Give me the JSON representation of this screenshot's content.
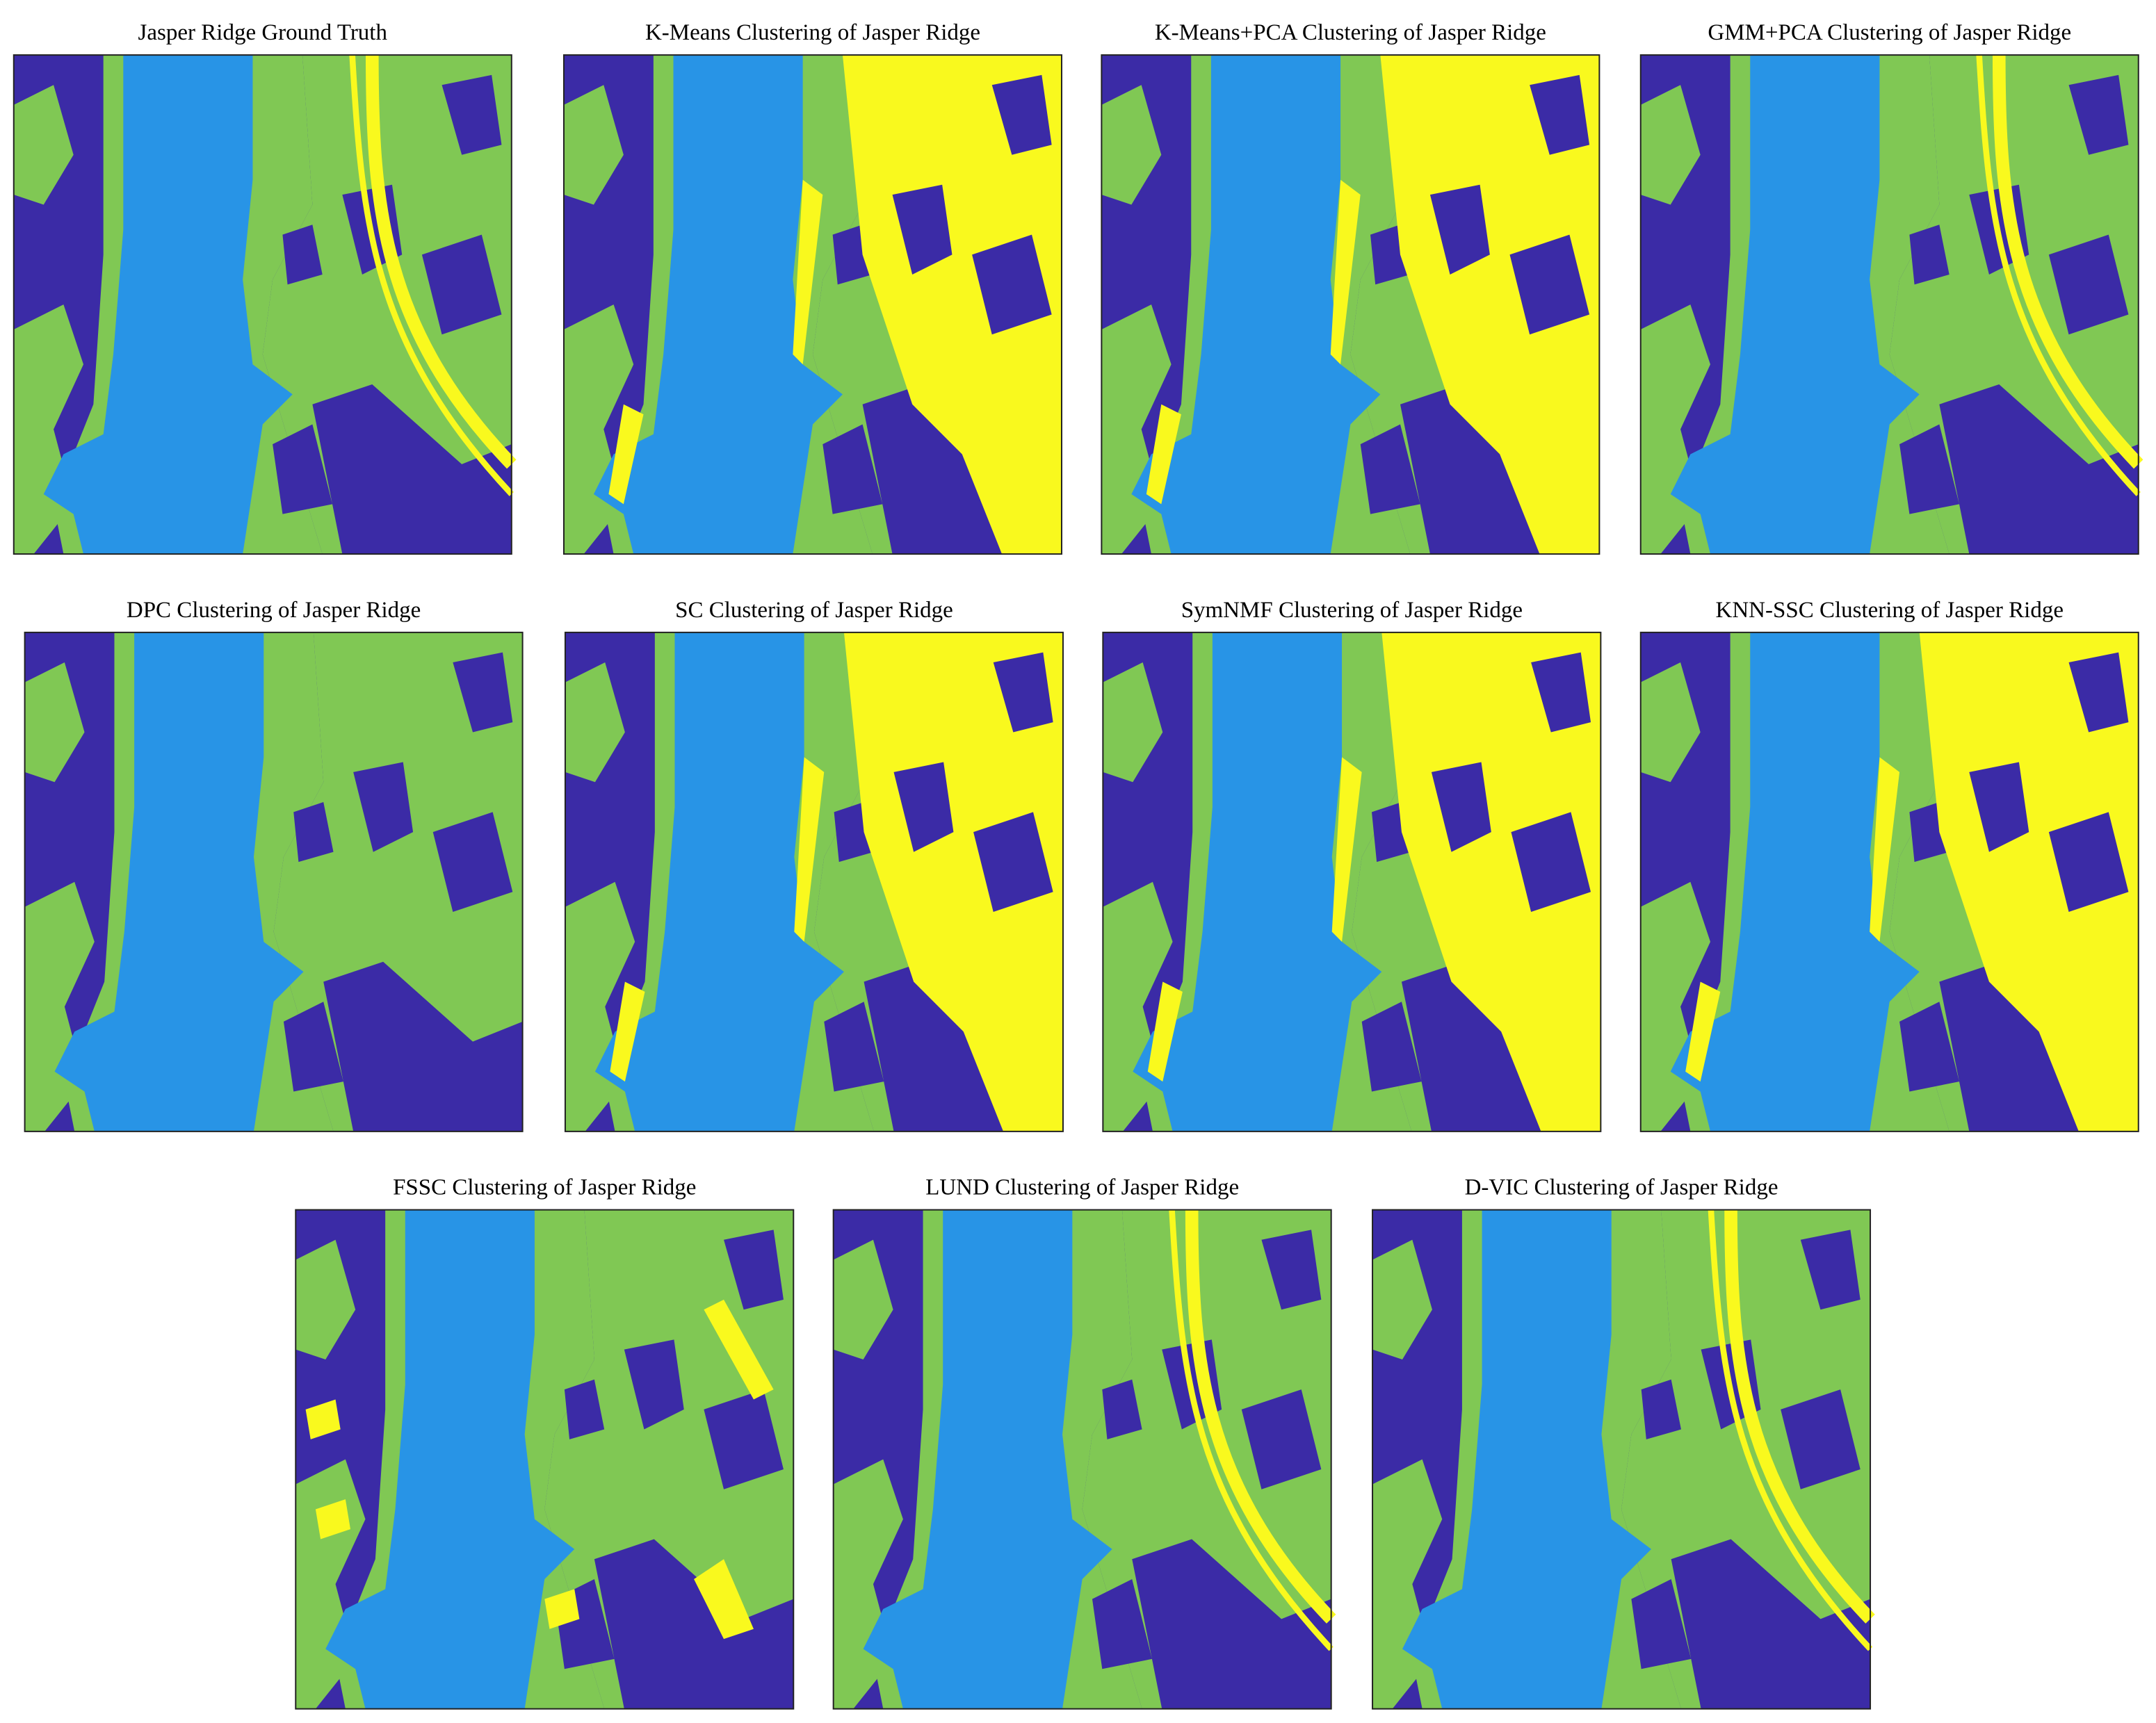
{
  "panels": [
    {
      "title": "Jasper Ridge Ground Truth"
    },
    {
      "title": "K-Means Clustering of Jasper Ridge"
    },
    {
      "title": "K-Means+PCA Clustering of Jasper Ridge"
    },
    {
      "title": "GMM+PCA Clustering of Jasper Ridge"
    },
    {
      "title": "DPC Clustering of Jasper Ridge"
    },
    {
      "title": "SC Clustering of Jasper Ridge"
    },
    {
      "title": "SymNMF Clustering of Jasper Ridge"
    },
    {
      "title": "KNN-SSC Clustering of Jasper Ridge"
    },
    {
      "title": "FSSC Clustering of Jasper Ridge"
    },
    {
      "title": "LUND Clustering of Jasper Ridge"
    },
    {
      "title": "D-VIC Clustering of Jasper Ridge"
    }
  ]
}
